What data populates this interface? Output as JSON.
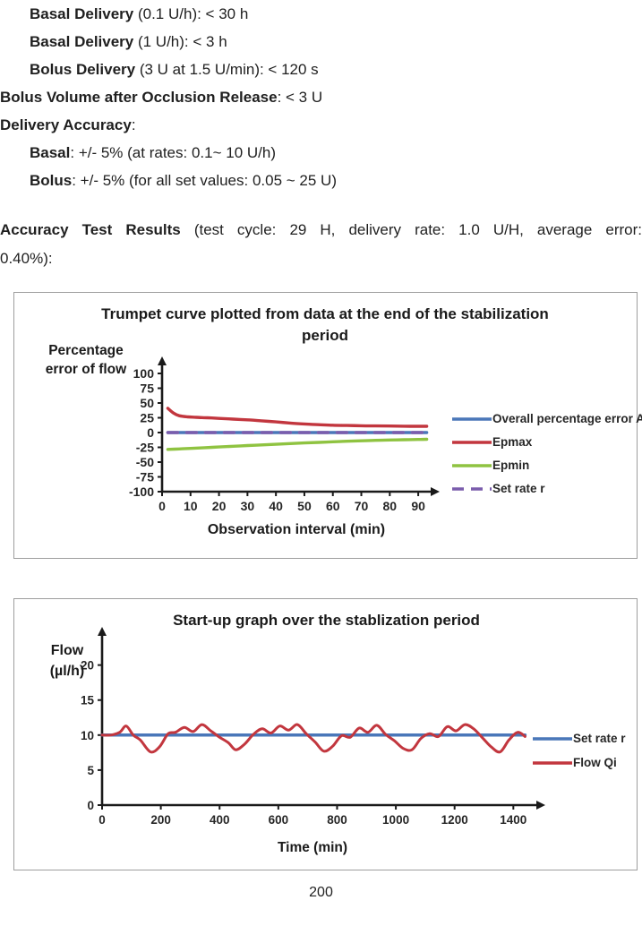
{
  "page": {
    "number": "200"
  },
  "text_block": {
    "lines": [
      {
        "indent": true,
        "bold": "Basal Delivery",
        "rest": " (0.1 U/h): < 30 h"
      },
      {
        "indent": true,
        "bold": "Basal Delivery",
        "rest": " (1 U/h): < 3 h"
      },
      {
        "indent": true,
        "bold": "Bolus Delivery",
        "rest": " (3 U at 1.5 U/min): < 120 s"
      },
      {
        "indent": false,
        "bold": "Bolus Volume after Occlusion Release",
        "rest": ": < 3 U"
      },
      {
        "indent": false,
        "bold": "Delivery Accuracy",
        "rest": ":"
      },
      {
        "indent": true,
        "bold": "Basal",
        "rest": ": +/- 5% (at rates: 0.1~ 10 U/h)"
      },
      {
        "indent": true,
        "bold": "Bolus",
        "rest": ": +/- 5% (for all set values: 0.05 ~ 25 U)"
      }
    ]
  },
  "accuracy": {
    "bold": "Accuracy Test Results",
    "line1_rest": " (test cycle: 29 H, delivery rate: 1.0 U/H, average error:",
    "line2": "0.40%):"
  },
  "chart_data": [
    {
      "type": "line",
      "title": "Trumpet curve plotted from data at the end of the stabilization period",
      "ylabel": "Percentage error of flow",
      "xlabel": "Observation interval (min)",
      "xlim": [
        0,
        95
      ],
      "ylim": [
        -100,
        100
      ],
      "xticks": [
        0,
        10,
        20,
        30,
        40,
        50,
        60,
        70,
        80,
        90
      ],
      "yticks": [
        100,
        75,
        50,
        25,
        0,
        -25,
        -50,
        -75,
        -100
      ],
      "grid": false,
      "legend_position": "right",
      "series": [
        {
          "name": "Overall percentage error A",
          "color": "#4a77b9",
          "dash": null,
          "width": 3.4,
          "x": [
            2,
            93
          ],
          "values": [
            0,
            0
          ]
        },
        {
          "name": "Epmax",
          "color": "#c2363e",
          "dash": null,
          "width": 3.4,
          "x": [
            2,
            4,
            6,
            9,
            12,
            16,
            20,
            25,
            30,
            35,
            40,
            45,
            50,
            55,
            60,
            65,
            70,
            75,
            80,
            85,
            90,
            93
          ],
          "values": [
            41,
            33,
            28.5,
            26.5,
            25.8,
            25,
            24,
            22.8,
            21.5,
            19.8,
            18,
            16,
            14.5,
            13.4,
            12.5,
            11.9,
            11.5,
            11.2,
            11,
            10.8,
            10.6,
            10.6
          ]
        },
        {
          "name": "Epmin",
          "color": "#8fc341",
          "dash": null,
          "width": 3.4,
          "x": [
            2,
            6,
            10,
            15,
            20,
            25,
            30,
            35,
            40,
            45,
            50,
            55,
            60,
            65,
            70,
            75,
            80,
            85,
            90,
            93
          ],
          "values": [
            -28.5,
            -27.8,
            -26.8,
            -25.6,
            -24.4,
            -23.2,
            -22,
            -20.9,
            -19.8,
            -18.7,
            -17.6,
            -16.6,
            -15.6,
            -14.7,
            -13.9,
            -13.2,
            -12.6,
            -12.1,
            -11.7,
            -11.4
          ]
        },
        {
          "name": "Set rate r",
          "color": "#7a5cac",
          "dash": "11 10",
          "width": 3.4,
          "x": [
            2,
            93
          ],
          "values": [
            0,
            0
          ]
        }
      ]
    },
    {
      "type": "line",
      "title": "Start-up graph over the stablization period",
      "ylabel": "Flow (µl/h)",
      "xlabel": "Time (min)",
      "xlim": [
        0,
        1460
      ],
      "ylim": [
        0,
        22
      ],
      "xticks": [
        0,
        200,
        400,
        600,
        800,
        1000,
        1200,
        1400
      ],
      "yticks": [
        0,
        5,
        10,
        15,
        20
      ],
      "grid": false,
      "legend_position": "right",
      "series": [
        {
          "name": "Set rate r",
          "color": "#4a77b9",
          "dash": null,
          "width": 3.5,
          "x": [
            0,
            1440
          ],
          "values": [
            10,
            10
          ]
        },
        {
          "name": "Flow Qi",
          "color": "#c2363e",
          "dash": null,
          "width": 3,
          "x": [
            0,
            30,
            60,
            82,
            106,
            130,
            165,
            195,
            225,
            250,
            280,
            310,
            340,
            370,
            400,
            430,
            455,
            485,
            515,
            545,
            575,
            605,
            635,
            665,
            695,
            725,
            755,
            785,
            815,
            845,
            875,
            905,
            935,
            965,
            995,
            1025,
            1055,
            1085,
            1115,
            1145,
            1175,
            1205,
            1235,
            1265,
            1295,
            1325,
            1355,
            1385,
            1415,
            1440
          ],
          "values": [
            10.0,
            10.0,
            10.4,
            11.3,
            10.0,
            9.3,
            7.6,
            8.3,
            10.2,
            10.4,
            11.1,
            10.5,
            11.5,
            10.6,
            9.7,
            8.9,
            7.9,
            8.7,
            10.1,
            10.9,
            10.3,
            11.3,
            10.7,
            11.5,
            10.2,
            9.0,
            7.7,
            8.4,
            9.9,
            9.7,
            11.0,
            10.4,
            11.4,
            10.1,
            9.2,
            8.1,
            7.9,
            9.5,
            10.2,
            9.8,
            11.2,
            10.6,
            11.5,
            10.9,
            9.6,
            8.3,
            7.6,
            9.3,
            10.4,
            9.8
          ]
        }
      ]
    }
  ]
}
